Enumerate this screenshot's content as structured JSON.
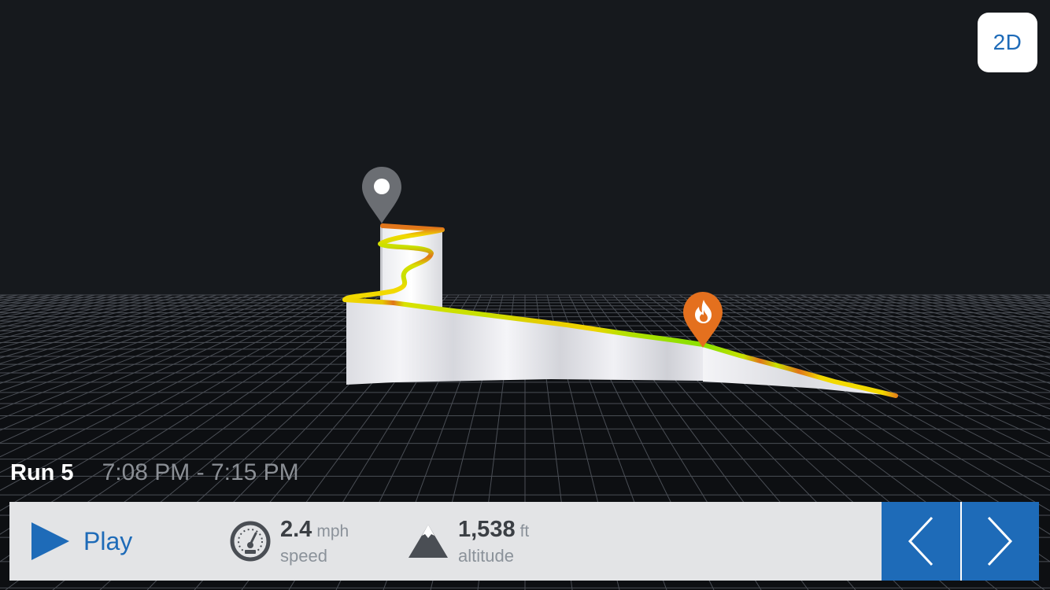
{
  "toggle": {
    "label": "2D"
  },
  "run": {
    "title": "Run 5",
    "time_range": "7:08 PM - 7:15 PM"
  },
  "controls": {
    "play_label": "Play",
    "speed": {
      "value": "2.4",
      "unit": "mph",
      "label": "speed"
    },
    "altitude": {
      "value": "1,538",
      "unit": "ft",
      "label": "altitude"
    }
  },
  "icons": {
    "start_marker": "map-pin-icon",
    "current_marker": "flame-pin-icon",
    "play": "play-icon",
    "speed": "speedometer-icon",
    "altitude": "mountain-icon",
    "prev": "chevron-left-icon",
    "next": "chevron-right-icon"
  },
  "colors": {
    "accent": "#1e6bb8",
    "background": "#16191d",
    "track_fast": "#8ee000",
    "track_mid": "#f2d900",
    "track_slow": "#e0751a",
    "current_marker": "#e4701e",
    "start_marker": "#6b6e73"
  }
}
